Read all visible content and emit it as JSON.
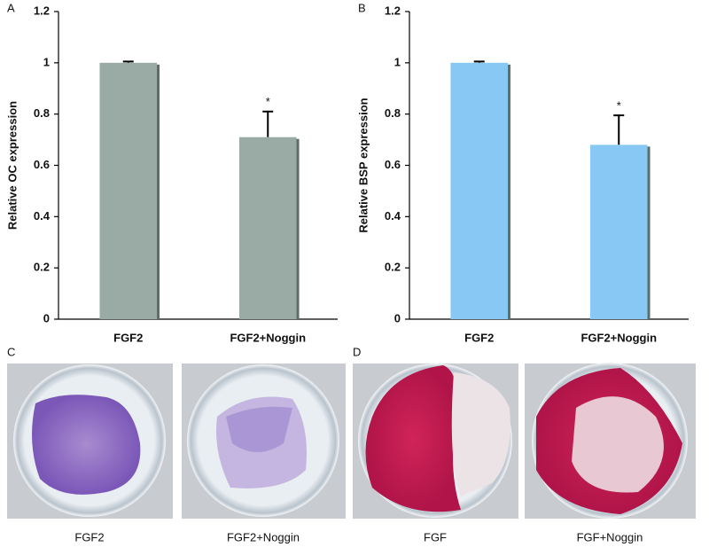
{
  "chart_data": [
    {
      "type": "bar",
      "panel_label": "A",
      "y_label": "Relative OC expression",
      "categories": [
        "FGF2",
        "FGF2+Noggin"
      ],
      "values": [
        1,
        0.71
      ],
      "errors": [
        0.005,
        0.1
      ],
      "annotations": [
        null,
        "*"
      ],
      "color": "#9aaba5",
      "ylim": [
        0,
        1.2
      ],
      "yticks": [
        0,
        0.2,
        0.4,
        0.6,
        0.8,
        1,
        1.2
      ]
    },
    {
      "type": "bar",
      "panel_label": "B",
      "y_label": "Relative BSP expression",
      "categories": [
        "FGF2",
        "FGF2+Noggin"
      ],
      "values": [
        1,
        0.68
      ],
      "errors": [
        0.005,
        0.115
      ],
      "annotations": [
        null,
        "*"
      ],
      "color": "#88c8f4",
      "ylim": [
        0,
        1.2
      ],
      "yticks": [
        0,
        0.2,
        0.4,
        0.6,
        0.8,
        1,
        1.2
      ]
    }
  ],
  "photos": {
    "panels": [
      "C",
      "D"
    ],
    "captions": [
      "FGF2",
      "FGF2+Noggin",
      "FGF",
      "FGF+Noggin"
    ]
  }
}
